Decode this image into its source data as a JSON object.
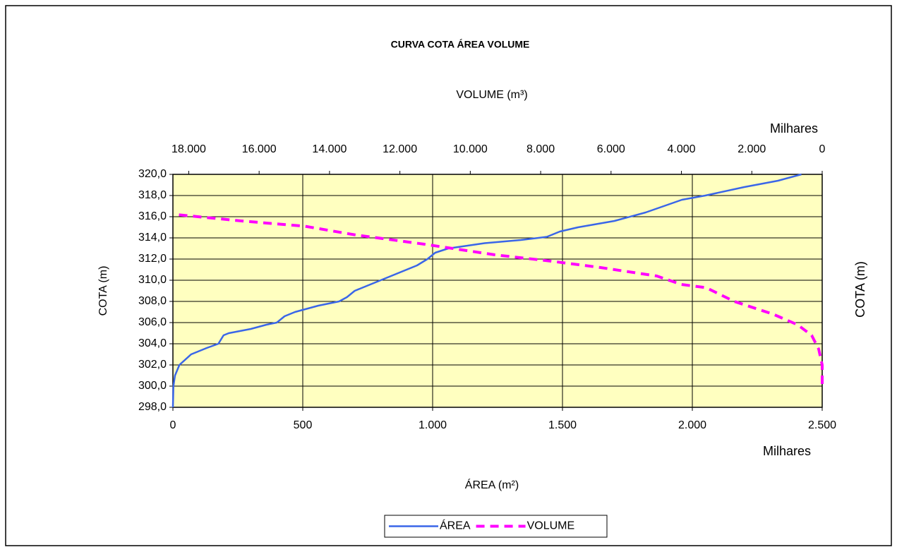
{
  "chart_data": {
    "type": "line",
    "title": "CURVA COTA ÁREA VOLUME",
    "x_label": "ÁREA (m²)",
    "x_scale_label": "Milhares",
    "x2_label": "VOLUME (m³)",
    "x2_scale_label": "Milhares",
    "y_label": "COTA (m)",
    "y2_label": "COTA (m)",
    "xlim": [
      0,
      2500
    ],
    "xticks": [
      0,
      500,
      {
        "value": 1000,
        "label": "1.000"
      },
      {
        "value": 1500,
        "label": "1.500"
      },
      {
        "value": 2000,
        "label": "2.000"
      },
      {
        "value": 2500,
        "label": "2.500"
      }
    ],
    "x2lim": [
      18450,
      0
    ],
    "x2ticks": [
      {
        "value": 18000,
        "label": "18.000"
      },
      {
        "value": 16000,
        "label": "16.000"
      },
      {
        "value": 14000,
        "label": "14.000"
      },
      {
        "value": 12000,
        "label": "12.000"
      },
      {
        "value": 10000,
        "label": "10.000"
      },
      {
        "value": 8000,
        "label": "8.000"
      },
      {
        "value": 6000,
        "label": "6.000"
      },
      {
        "value": 4000,
        "label": "4.000"
      },
      {
        "value": 2000,
        "label": "2.000"
      },
      0
    ],
    "ylim": [
      298,
      320
    ],
    "yticks": [
      {
        "value": 298,
        "label": "298,0"
      },
      {
        "value": 300,
        "label": "300,0"
      },
      {
        "value": 302,
        "label": "302,0"
      },
      {
        "value": 304,
        "label": "304,0"
      },
      {
        "value": 306,
        "label": "306,0"
      },
      {
        "value": 308,
        "label": "308,0"
      },
      {
        "value": 310,
        "label": "310,0"
      },
      {
        "value": 312,
        "label": "312,0"
      },
      {
        "value": 314,
        "label": "314,0"
      },
      {
        "value": 316,
        "label": "316,0"
      },
      {
        "value": 318,
        "label": "318,0"
      },
      {
        "value": 320,
        "label": "320,0"
      }
    ],
    "grid": true,
    "plot_background": "#ffffc0",
    "legend": "bottom",
    "series": [
      {
        "name": "ÁREA",
        "color": "#3a66e8",
        "line_style": "solid",
        "x": [
          0,
          2,
          8,
          25,
          70,
          130,
          175,
          195,
          215,
          300,
          360,
          400,
          430,
          470,
          560,
          640,
          670,
          700,
          760,
          840,
          940,
          980,
          1010,
          1060,
          1200,
          1340,
          1440,
          1490,
          1560,
          1700,
          1820,
          1960,
          2050,
          2200,
          2330,
          2420
        ],
        "values": [
          298,
          300,
          301,
          302,
          303,
          303.6,
          304,
          304.8,
          305,
          305.4,
          305.8,
          306,
          306.6,
          307,
          307.6,
          308,
          308.4,
          309,
          309.6,
          310.4,
          311.4,
          312,
          312.6,
          313,
          313.5,
          313.8,
          314.1,
          314.6,
          315,
          315.6,
          316.4,
          317.6,
          318,
          318.8,
          319.4,
          320
        ]
      },
      {
        "name": "VOLUME",
        "color": "#ff00ff",
        "line_style": "dashed",
        "axis": "x2",
        "x": [
          0,
          0,
          100,
          300,
          700,
          1400,
          2500,
          3300,
          4000,
          4700,
          6300,
          7700,
          9300,
          11300,
          13300,
          14700,
          16500,
          18350
        ],
        "values": [
          300.2,
          302,
          303.5,
          304.8,
          305.8,
          306.8,
          308,
          309.3,
          309.6,
          310.4,
          311.2,
          311.8,
          312.4,
          313.4,
          314.3,
          315.1,
          315.6,
          316.2
        ]
      }
    ]
  }
}
